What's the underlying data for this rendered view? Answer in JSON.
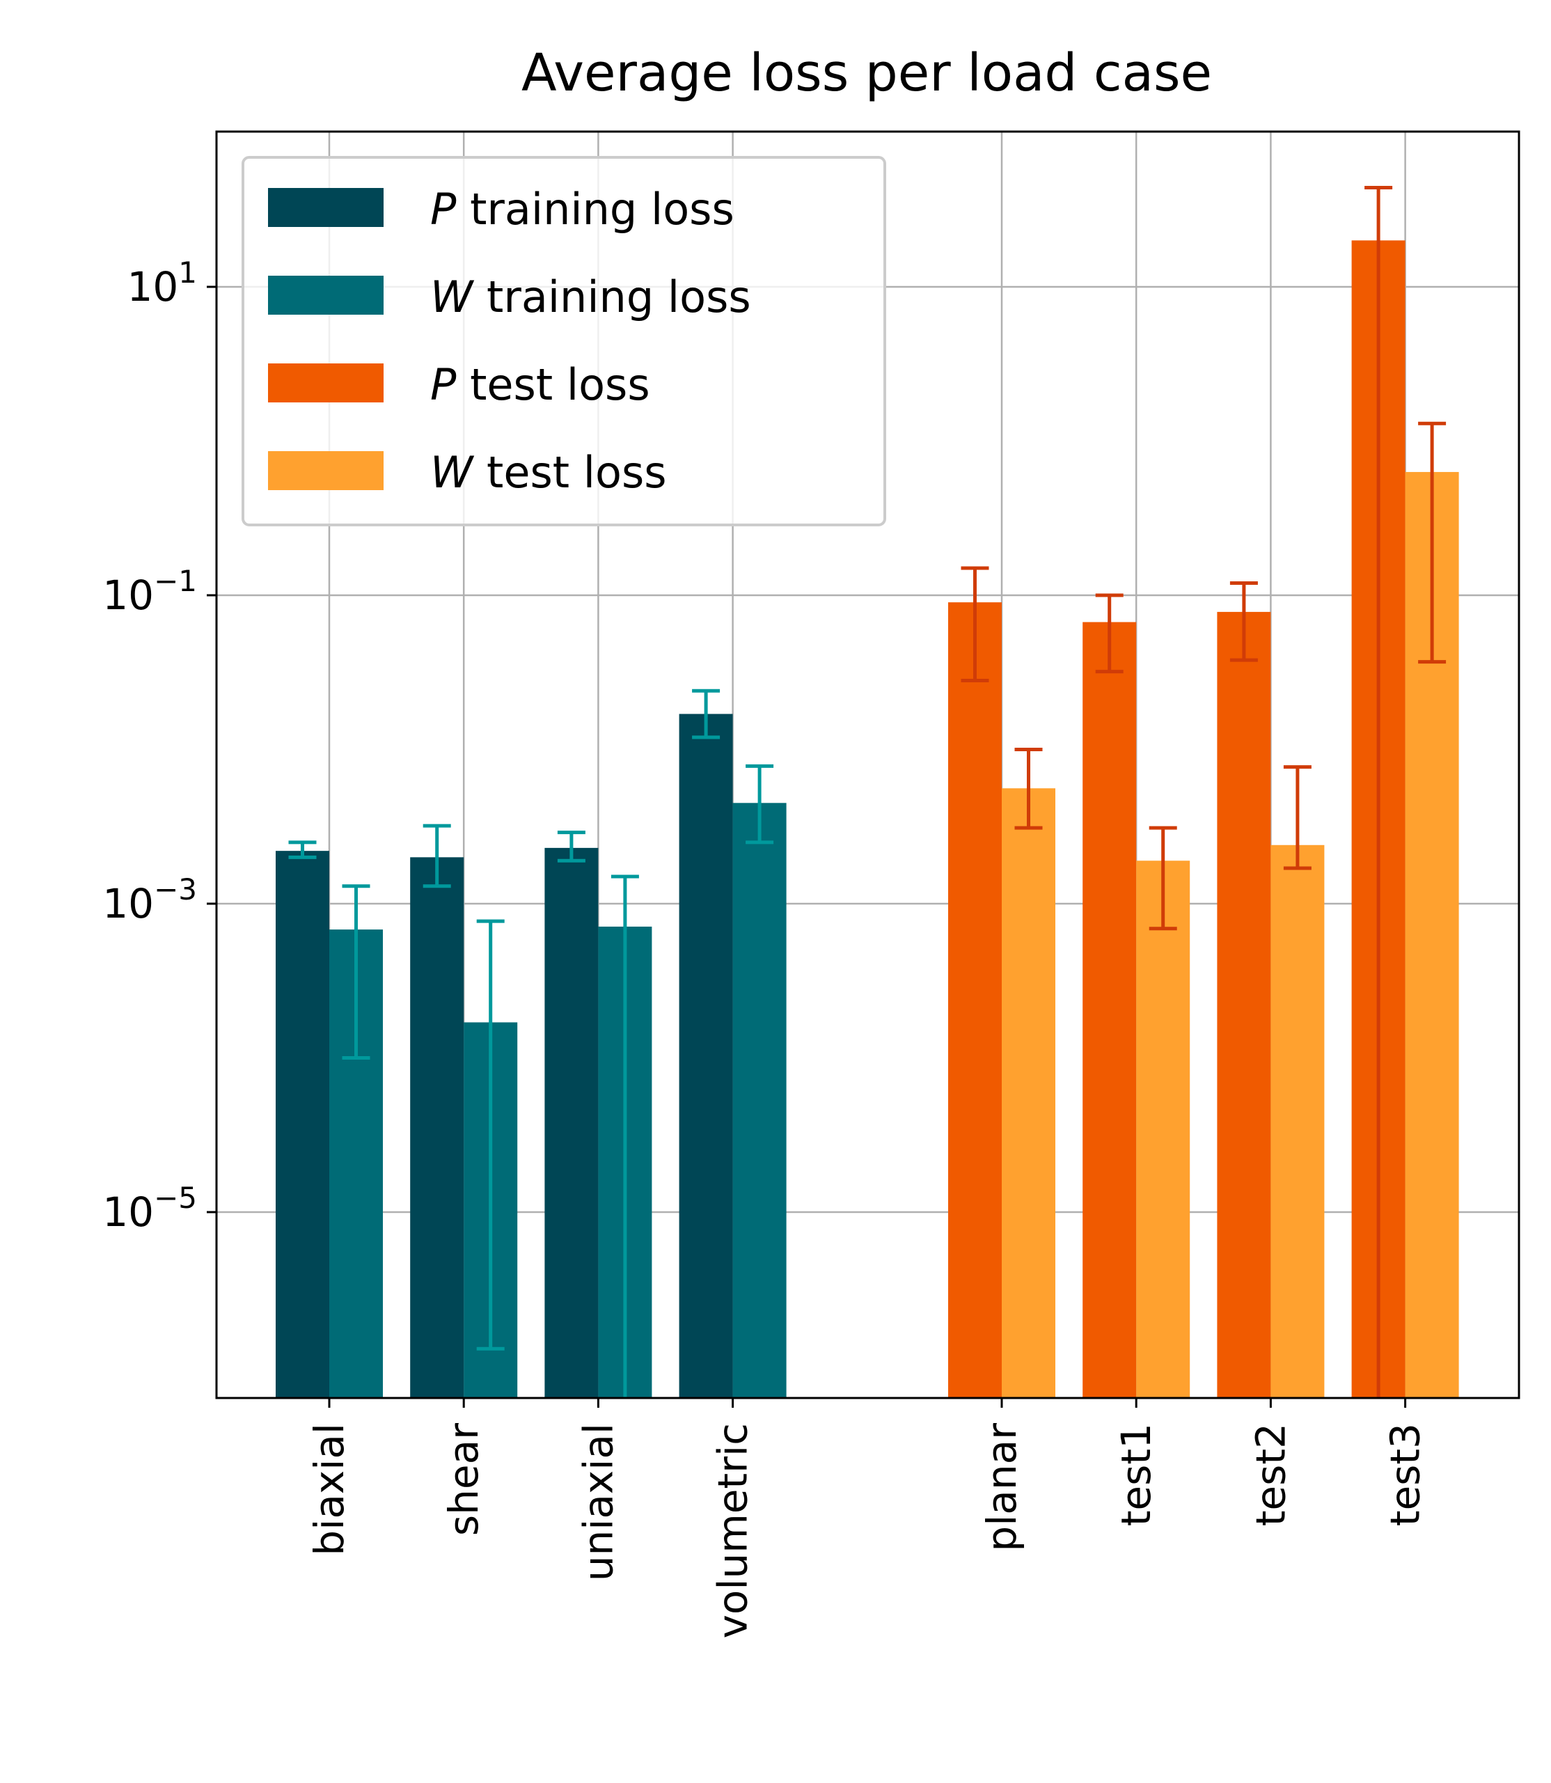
{
  "chart_data": {
    "type": "bar",
    "title": "Average loss per load case",
    "xlabel": "",
    "ylabel": "",
    "yscale": "log",
    "ylim": [
      4e-07,
      100
    ],
    "yticks": [
      {
        "value": 10,
        "base": "10",
        "exp": "1"
      },
      {
        "value": 0.1,
        "base": "10",
        "exp": "−1"
      },
      {
        "value": 0.001,
        "base": "10",
        "exp": "−3"
      },
      {
        "value": 1e-05,
        "base": "10",
        "exp": "−5"
      }
    ],
    "grid": true,
    "legend_position": "upper-left",
    "groups": [
      {
        "name": "training",
        "categories": [
          "biaxial",
          "shear",
          "uniaxial",
          "volumetric"
        ],
        "series": [
          {
            "name": "P training loss",
            "symbol": "P",
            "suffix": " training loss",
            "color": "#004655",
            "values": [
              0.0022,
              0.002,
              0.0023,
              0.017
            ],
            "err_low": [
              0.002,
              0.0013,
              0.0019,
              0.012
            ],
            "err_high": [
              0.0025,
              0.0032,
              0.0029,
              0.024
            ]
          },
          {
            "name": "W training loss",
            "symbol": "W",
            "suffix": " training loss",
            "color": "#006b76",
            "values": [
              0.00068,
              0.00017,
              0.00071,
              0.0045
            ],
            "err_low": [
              0.0001,
              1.3e-06,
              3.9e-07,
              0.0025
            ],
            "err_high": [
              0.0013,
              0.00077,
              0.0015,
              0.0078
            ]
          }
        ]
      },
      {
        "name": "test",
        "categories": [
          "planar",
          "test1",
          "test2",
          "test3"
        ],
        "series": [
          {
            "name": "P test loss",
            "symbol": "P",
            "suffix": " test loss",
            "color": "#f05a00",
            "values": [
              0.09,
              0.067,
              0.078,
              20
            ],
            "err_low": [
              0.028,
              0.032,
              0.038,
              4e-07
            ],
            "err_high": [
              0.15,
              0.1,
              0.12,
              44
            ]
          },
          {
            "name": "W test loss",
            "symbol": "W",
            "suffix": " test loss",
            "color": "#ffa12f",
            "values": [
              0.0056,
              0.0019,
              0.0024,
              0.63
            ],
            "err_low": [
              0.0031,
              0.00069,
              0.0017,
              0.037
            ],
            "err_high": [
              0.01,
              0.0031,
              0.0077,
              1.3
            ]
          }
        ]
      }
    ],
    "errorbar_colors": {
      "training": "#00999c",
      "test": "#d03c08"
    },
    "legend": [
      {
        "symbol": "P",
        "text": " training loss",
        "color": "#004655"
      },
      {
        "symbol": "W",
        "text": " training loss",
        "color": "#006b76"
      },
      {
        "symbol": "P",
        "text": " test loss",
        "color": "#f05a00"
      },
      {
        "symbol": "W",
        "text": " test loss",
        "color": "#ffa12f"
      }
    ]
  }
}
